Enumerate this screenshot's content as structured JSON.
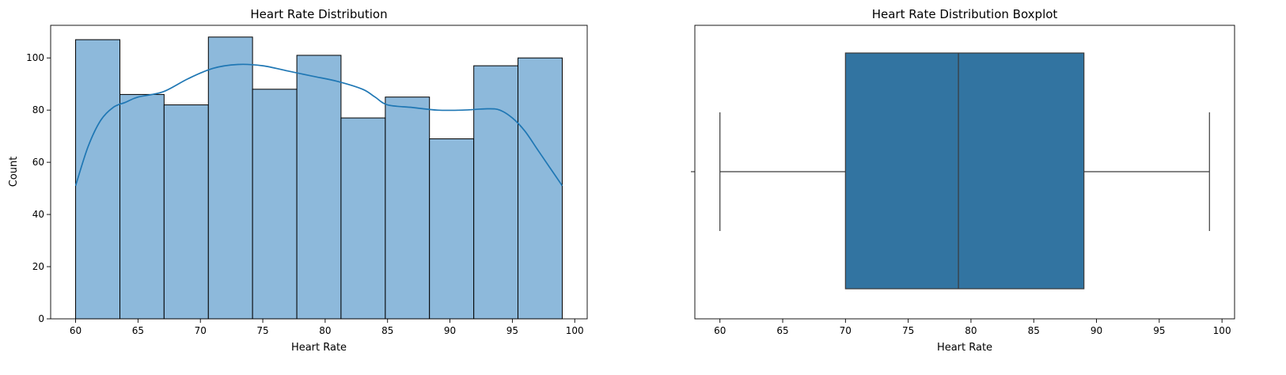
{
  "chart_data": [
    {
      "type": "bar",
      "subtype": "histogram-with-kde",
      "title": "Heart Rate Distribution",
      "xlabel": "Heart Rate",
      "ylabel": "Count",
      "xlim": [
        58.0,
        101.0
      ],
      "ylim": [
        0,
        112.5
      ],
      "xticks": [
        60,
        65,
        70,
        75,
        80,
        85,
        90,
        95,
        100
      ],
      "yticks": [
        0,
        20,
        40,
        60,
        80,
        100
      ],
      "bins": [
        {
          "x0": 60.0,
          "x1": 63.55,
          "count": 107
        },
        {
          "x0": 63.55,
          "x1": 67.09,
          "count": 86
        },
        {
          "x0": 67.09,
          "x1": 70.64,
          "count": 82
        },
        {
          "x0": 70.64,
          "x1": 74.18,
          "count": 108
        },
        {
          "x0": 74.18,
          "x1": 77.73,
          "count": 88
        },
        {
          "x0": 77.73,
          "x1": 81.27,
          "count": 101
        },
        {
          "x0": 81.27,
          "x1": 84.82,
          "count": 77
        },
        {
          "x0": 84.82,
          "x1": 88.36,
          "count": 85
        },
        {
          "x0": 88.36,
          "x1": 91.91,
          "count": 69
        },
        {
          "x0": 91.91,
          "x1": 95.45,
          "count": 97
        },
        {
          "x0": 95.45,
          "x1": 99.0,
          "count": 100
        }
      ],
      "kde": {
        "x": [
          60,
          61,
          62,
          63,
          64,
          65,
          67,
          69,
          71,
          73,
          75,
          77,
          79,
          81,
          83,
          84,
          85,
          87,
          89,
          91,
          93,
          94,
          95,
          96,
          97,
          98,
          99
        ],
        "y": [
          51,
          66,
          76,
          81,
          83,
          85,
          87,
          92,
          96,
          97.5,
          97,
          95,
          93,
          91,
          88,
          85,
          82,
          81,
          80,
          80,
          80.5,
          80,
          77,
          72,
          65,
          58,
          51
        ]
      },
      "bar_color": "#8db9db",
      "bar_edge_color": "#000000",
      "kde_color": "#1f77b4"
    },
    {
      "type": "boxplot",
      "title": "Heart Rate Distribution Boxplot",
      "xlabel": "Heart Rate",
      "ylabel": "",
      "xlim": [
        58.0,
        101.0
      ],
      "xticks": [
        60,
        65,
        70,
        75,
        80,
        85,
        90,
        95,
        100
      ],
      "stats": {
        "whisker_low": 60,
        "q1": 70,
        "median": 79,
        "q3": 89,
        "whisker_high": 99
      },
      "box_color": "#3274a1",
      "line_color": "#3a3a3a"
    }
  ]
}
